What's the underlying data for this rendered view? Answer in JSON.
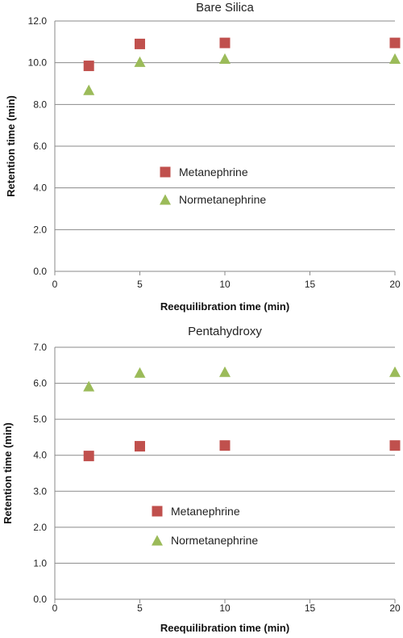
{
  "chart_data": [
    {
      "type": "scatter",
      "title": "Bare Silica",
      "xlabel": "Reequilibration time (min)",
      "ylabel": "Retention time (min)",
      "xlim": [
        0,
        20
      ],
      "ylim": [
        0,
        12
      ],
      "xticks": [
        "0",
        "5",
        "10",
        "15",
        "20"
      ],
      "yticks": [
        "0.0",
        "2.0",
        "4.0",
        "6.0",
        "8.0",
        "10.0",
        "12.0"
      ],
      "grid": "horizontal",
      "legend_position": "center",
      "series": [
        {
          "name": "Metanephrine",
          "marker": "square",
          "color": "#c0504d",
          "x": [
            2,
            5,
            10,
            20
          ],
          "y": [
            9.85,
            10.9,
            10.95,
            10.95
          ]
        },
        {
          "name": "Normetanephrine",
          "marker": "triangle",
          "color": "#9bbb59",
          "x": [
            2,
            5,
            10,
            20
          ],
          "y": [
            8.7,
            10.05,
            10.2,
            10.2
          ]
        }
      ]
    },
    {
      "type": "scatter",
      "title": "Pentahydroxy",
      "xlabel": "Reequilibration time (min)",
      "ylabel": "Retention time (min)",
      "xlim": [
        0,
        20
      ],
      "ylim": [
        0,
        7
      ],
      "xticks": [
        "0",
        "5",
        "10",
        "15",
        "20"
      ],
      "yticks": [
        "0.0",
        "1.0",
        "2.0",
        "3.0",
        "4.0",
        "5.0",
        "6.0",
        "7.0"
      ],
      "grid": "horizontal",
      "legend_position": "center",
      "series": [
        {
          "name": "Metanephrine",
          "marker": "square",
          "color": "#c0504d",
          "x": [
            2,
            5,
            10,
            20
          ],
          "y": [
            3.98,
            4.25,
            4.27,
            4.27
          ]
        },
        {
          "name": "Normetanephrine",
          "marker": "triangle",
          "color": "#9bbb59",
          "x": [
            2,
            5,
            10,
            20
          ],
          "y": [
            5.92,
            6.3,
            6.32,
            6.32
          ]
        }
      ]
    }
  ]
}
